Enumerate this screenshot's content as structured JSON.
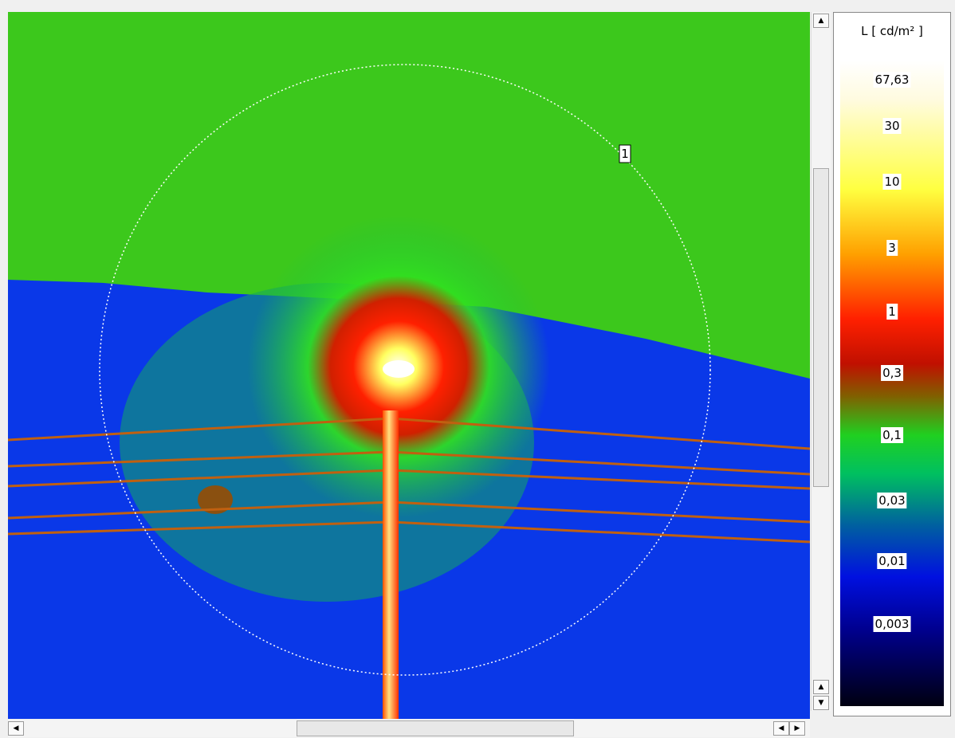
{
  "legend": {
    "title": "L [ cd/m² ]",
    "labels": [
      "67,63",
      "30",
      "10",
      "3",
      "1",
      "0,3",
      "0,1",
      "0,03",
      "0,01",
      "0,003"
    ]
  },
  "image": {
    "region_label": "1"
  }
}
